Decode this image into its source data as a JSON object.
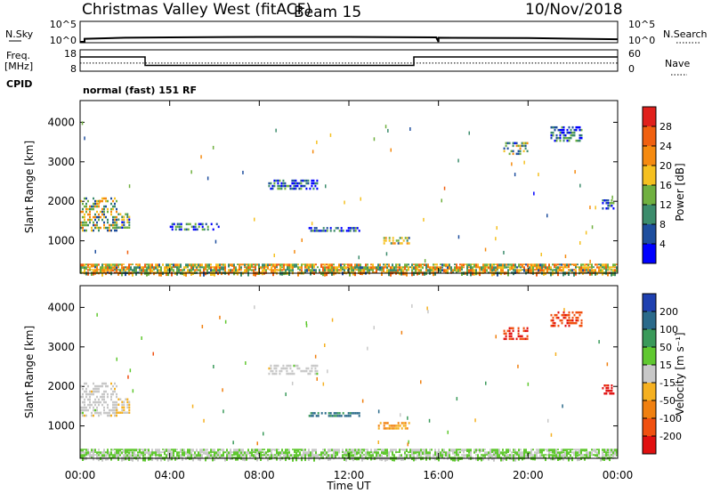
{
  "header": {
    "title": "Christmas Valley West (fitACF)",
    "beam": "Beam 15",
    "date": "10/Nov/2018"
  },
  "noise_panel": {
    "left_label": "N.Sky",
    "right_label": "N.Search",
    "y_ticks_left": [
      "10^5",
      "10^0"
    ],
    "y_ticks_right": [
      "10^5",
      "10^0"
    ]
  },
  "freq_panel": {
    "left_label_1": "Freq.",
    "left_label_2": "[MHz]",
    "right_label": "Nave",
    "y_ticks_left": [
      "18",
      "8"
    ],
    "y_ticks_right": [
      "60",
      "0"
    ]
  },
  "cpid_panel": {
    "label": "CPID",
    "text": "normal (fast) 151 RF"
  },
  "time_axis": {
    "label": "Time UT",
    "ticks": [
      "00:00",
      "04:00",
      "08:00",
      "12:00",
      "16:00",
      "20:00",
      "00:00"
    ]
  },
  "power_colorbar": {
    "label": "Power [dB]",
    "ticks": [
      "28",
      "24",
      "20",
      "16",
      "12",
      "8",
      "4"
    ],
    "colors": [
      "#e0201c",
      "#f06010",
      "#f58a10",
      "#f5c020",
      "#70b040",
      "#3c8c6c",
      "#1e4e9e",
      "#0000ff"
    ]
  },
  "velocity_colorbar": {
    "label": "Velocity [m s⁻¹]",
    "ticks": [
      "200",
      "100",
      "50",
      "15",
      "-15",
      "-50",
      "-100",
      "-200"
    ],
    "colors": [
      "#1e40b0",
      "#2a6a8a",
      "#3a9a5a",
      "#60c830",
      "#c8c8c8",
      "#f5b020",
      "#f08010",
      "#f05010",
      "#e01010"
    ]
  },
  "chart_data": [
    {
      "type": "line",
      "title": "N.Sky",
      "x_range_hours": [
        0,
        24
      ],
      "ylim_log10": [
        0,
        5
      ],
      "series": [
        {
          "name": "N.Sky",
          "x": [
            0.0,
            0.2,
            0.2,
            2.0,
            4.0,
            8.0,
            12.0,
            15.9,
            16.0,
            16.0,
            20.0,
            24.0
          ],
          "y_log10": [
            0.0,
            0.0,
            0.8,
            1.1,
            1.2,
            1.3,
            1.3,
            1.2,
            0.0,
            1.1,
            1.0,
            0.7
          ]
        }
      ]
    },
    {
      "type": "line",
      "title": "Freq. [MHz]",
      "x_range_hours": [
        0,
        24
      ],
      "ylim": [
        8,
        18
      ],
      "series": [
        {
          "name": "Freq.",
          "x": [
            0.0,
            2.9,
            2.9,
            14.9,
            14.9,
            24.0
          ],
          "y": [
            14.8,
            14.8,
            10.5,
            10.5,
            14.8,
            14.8
          ]
        },
        {
          "name": "Nave",
          "x": [
            0.0,
            24.0
          ],
          "y_right": [
            22,
            22
          ]
        }
      ]
    },
    {
      "type": "heatmap",
      "title": "Power [dB]",
      "xlabel": "Time UT",
      "ylabel": "Slant Range [km]",
      "x_range_hours": [
        0,
        24
      ],
      "ylim": [
        180,
        4550
      ],
      "y_ticks": [
        1000,
        2000,
        3000,
        4000
      ],
      "clim": [
        0,
        30
      ],
      "patches": [
        {
          "t0": 0.0,
          "t1": 1.6,
          "r0": 1250,
          "r1": 2100,
          "value": 14
        },
        {
          "t0": 1.6,
          "t1": 2.2,
          "r0": 1350,
          "r1": 1700,
          "value": 10
        },
        {
          "t0": 4.0,
          "t1": 6.2,
          "r0": 1300,
          "r1": 1450,
          "value": 6
        },
        {
          "t0": 8.4,
          "t1": 10.6,
          "r0": 2300,
          "r1": 2550,
          "value": 5
        },
        {
          "t0": 10.2,
          "t1": 12.5,
          "r0": 1250,
          "r1": 1350,
          "value": 5
        },
        {
          "t0": 13.3,
          "t1": 14.7,
          "r0": 950,
          "r1": 1100,
          "value": 14
        },
        {
          "t0": 18.9,
          "t1": 20.0,
          "r0": 3200,
          "r1": 3500,
          "value": 12
        },
        {
          "t0": 21.0,
          "t1": 22.4,
          "r0": 3500,
          "r1": 3900,
          "value": 6
        },
        {
          "t0": 23.3,
          "t1": 23.8,
          "r0": 1800,
          "r1": 2050,
          "value": 7
        },
        {
          "t0": 0.0,
          "t1": 24.0,
          "r0": 200,
          "r1": 420,
          "value": 16
        }
      ]
    },
    {
      "type": "heatmap",
      "title": "Velocity [m s⁻¹]",
      "xlabel": "Time UT",
      "ylabel": "Slant Range [km]",
      "x_range_hours": [
        0,
        24
      ],
      "ylim": [
        180,
        4550
      ],
      "y_ticks": [
        1000,
        2000,
        3000,
        4000
      ],
      "clim": [
        -250,
        250
      ],
      "patches": [
        {
          "t0": 0.0,
          "t1": 1.6,
          "r0": 1250,
          "r1": 2100,
          "value": 0
        },
        {
          "t0": 1.6,
          "t1": 2.2,
          "r0": 1350,
          "r1": 1700,
          "value": -40
        },
        {
          "t0": 8.4,
          "t1": 10.6,
          "r0": 2300,
          "r1": 2550,
          "value": 0
        },
        {
          "t0": 10.2,
          "t1": 12.5,
          "r0": 1250,
          "r1": 1350,
          "value": 150
        },
        {
          "t0": 13.3,
          "t1": 14.7,
          "r0": 950,
          "r1": 1100,
          "value": -80
        },
        {
          "t0": 18.9,
          "t1": 20.0,
          "r0": 3200,
          "r1": 3500,
          "value": -200
        },
        {
          "t0": 21.0,
          "t1": 22.4,
          "r0": 3500,
          "r1": 3900,
          "value": -180
        },
        {
          "t0": 23.3,
          "t1": 23.8,
          "r0": 1800,
          "r1": 2050,
          "value": -220
        },
        {
          "t0": 0.0,
          "t1": 24.0,
          "r0": 200,
          "r1": 420,
          "value": 30
        }
      ]
    }
  ]
}
